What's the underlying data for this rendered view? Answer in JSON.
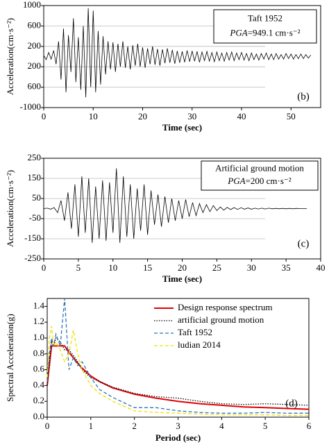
{
  "chart_data": [
    {
      "type": "line",
      "x_label": "Time (sec)",
      "y_label": "Acceleration(cm·s⁻²)",
      "annotation": "Taft 1952",
      "pga_label": "PGA",
      "pga_value": "=949.1 cm·s⁻²",
      "panel_label": "(b)",
      "color": "#000000",
      "grid": true,
      "xlim": [
        0,
        56
      ],
      "xticks": [
        0,
        10,
        20,
        30,
        40,
        50
      ],
      "ylim": [
        -1000,
        1000
      ],
      "yticks": [
        1000,
        600,
        200,
        {
          "value": -200,
          "label": "200"
        },
        {
          "value": -600,
          "label": "600"
        },
        {
          "value": -1000,
          "label": "-1000"
        }
      ],
      "x": [
        0,
        0.5,
        1,
        1.5,
        2,
        2.5,
        3,
        3.5,
        4,
        4.5,
        5,
        5.5,
        6,
        6.5,
        7,
        7.5,
        8,
        8.5,
        9,
        9.5,
        10,
        10.5,
        11,
        11.5,
        12,
        12.5,
        13,
        13.5,
        14,
        14.5,
        15,
        15.5,
        16,
        16.5,
        17,
        17.5,
        18,
        18.5,
        19,
        19.5,
        20,
        20.5,
        21,
        21.5,
        22,
        22.5,
        23,
        23.5,
        24,
        24.5,
        25,
        25.5,
        26,
        26.5,
        27,
        27.5,
        28,
        28.5,
        29,
        29.5,
        30,
        30.5,
        31,
        31.5,
        32,
        32.5,
        33,
        33.5,
        34,
        34.5,
        35,
        35.5,
        36,
        36.5,
        37,
        37.5,
        38,
        38.5,
        39,
        39.5,
        40,
        40.5,
        41,
        41.5,
        42,
        42.5,
        43,
        43.5,
        44,
        44.5,
        45,
        45.5,
        46,
        46.5,
        47,
        47.5,
        48,
        48.5,
        49,
        49.5,
        50,
        50.5,
        51,
        51.5,
        52,
        52.5,
        53,
        53.5,
        54
      ],
      "values": [
        20,
        -60,
        80,
        -50,
        120,
        -150,
        300,
        -450,
        550,
        -700,
        420,
        -300,
        750,
        -500,
        380,
        -650,
        600,
        -800,
        949.1,
        -600,
        900,
        -700,
        500,
        -550,
        400,
        -350,
        300,
        -250,
        280,
        -300,
        250,
        -200,
        300,
        -220,
        200,
        -250,
        220,
        -180,
        250,
        -200,
        180,
        -220,
        160,
        -150,
        200,
        -160,
        150,
        -180,
        140,
        -130,
        160,
        -120,
        130,
        -140,
        110,
        -120,
        100,
        -110,
        120,
        -100,
        110,
        -90,
        100,
        -110,
        90,
        -80,
        100,
        -90,
        80,
        -100,
        90,
        -80,
        70,
        -90,
        80,
        -70,
        90,
        -80,
        70,
        -60,
        80,
        -70,
        60,
        -80,
        70,
        -60,
        50,
        -70,
        60,
        -50,
        70,
        -60,
        50,
        -60,
        60,
        -50,
        40,
        -50,
        60,
        -40,
        50,
        -50,
        40,
        -40,
        50,
        -40,
        40,
        -30,
        30
      ]
    },
    {
      "type": "line",
      "x_label": "Time (sec)",
      "y_label": "Acceleration(cm·s⁻²)",
      "annotation": "Artificial ground motion",
      "pga_label": "PGA",
      "pga_value": "=200 cm·s⁻²",
      "panel_label": "(c)",
      "color": "#000000",
      "grid": true,
      "xlim": [
        0,
        40
      ],
      "xticks": [
        0,
        5,
        10,
        15,
        20,
        25,
        30,
        35,
        40
      ],
      "ylim": [
        -250,
        250
      ],
      "yticks": [
        250,
        150,
        50,
        -50,
        -150,
        -250
      ],
      "x": [
        0,
        0.5,
        1,
        1.5,
        2,
        2.5,
        3,
        3.5,
        4,
        4.5,
        5,
        5.5,
        6,
        6.5,
        7,
        7.5,
        8,
        8.5,
        9,
        9.5,
        10,
        10.5,
        11,
        11.5,
        12,
        12.5,
        13,
        13.5,
        14,
        14.5,
        15,
        15.5,
        16,
        16.5,
        17,
        17.5,
        18,
        18.5,
        19,
        19.5,
        20,
        20.5,
        21,
        21.5,
        22,
        22.5,
        23,
        23.5,
        24,
        24.5,
        25,
        25.5,
        26,
        26.5,
        27,
        27.5,
        28,
        28.5,
        29,
        29.5,
        30,
        30.5,
        31,
        31.5,
        32,
        32.5,
        33,
        33.5,
        34,
        34.5,
        35,
        35.5,
        36,
        36.5,
        37,
        37.5,
        38
      ],
      "values": [
        0,
        2,
        -3,
        5,
        -20,
        40,
        -60,
        80,
        -100,
        120,
        -140,
        160,
        -120,
        150,
        -170,
        110,
        -150,
        140,
        -160,
        130,
        -120,
        200,
        -170,
        160,
        -140,
        120,
        -150,
        100,
        -110,
        120,
        -130,
        90,
        -80,
        70,
        -90,
        60,
        -70,
        50,
        -60,
        40,
        -50,
        45,
        -40,
        30,
        -35,
        25,
        -20,
        20,
        -15,
        15,
        -10,
        8,
        -8,
        6,
        -5,
        5,
        -4,
        4,
        -3,
        3,
        -3,
        2,
        -2,
        2,
        -2,
        2,
        -1,
        1,
        -1,
        1,
        -1,
        1,
        -1,
        1,
        0,
        0,
        0
      ]
    },
    {
      "type": "line",
      "x_label": "Period (sec)",
      "y_label": "Spectral Acceleration(g)",
      "panel_label": "(d)",
      "grid": false,
      "legend": "top-right",
      "xlim": [
        0,
        6
      ],
      "xticks": [
        0,
        1,
        2,
        3,
        4,
        5,
        6
      ],
      "ylim": [
        0,
        1.5
      ],
      "yticks": [
        {
          "value": 0,
          "label": "0.0"
        },
        0.2,
        0.4,
        0.6,
        0.8,
        {
          "value": 1,
          "label": "1.0"
        },
        1.2,
        1.4
      ],
      "x": [
        0,
        0.05,
        0.1,
        0.15,
        0.2,
        0.3,
        0.4,
        0.5,
        0.6,
        0.7,
        0.8,
        1.0,
        1.2,
        1.5,
        2,
        2.5,
        3,
        3.5,
        4,
        4.5,
        5,
        5.5,
        6
      ],
      "series": [
        {
          "name": "Design response spectrum",
          "color": "#e00000",
          "style": "solid",
          "values": [
            0.4,
            0.65,
            0.9,
            0.9,
            0.9,
            0.9,
            0.9,
            0.82,
            0.75,
            0.68,
            0.62,
            0.52,
            0.45,
            0.37,
            0.29,
            0.24,
            0.2,
            0.17,
            0.15,
            0.13,
            0.12,
            0.11,
            0.1
          ]
        },
        {
          "name": "artificial ground motion",
          "color": "#000000",
          "style": "dotted",
          "values": [
            0.4,
            0.7,
            0.95,
            0.9,
            1.0,
            0.95,
            0.85,
            0.85,
            0.78,
            0.7,
            0.6,
            0.5,
            0.45,
            0.38,
            0.3,
            0.26,
            0.24,
            0.2,
            0.17,
            0.16,
            0.17,
            0.16,
            0.15
          ]
        },
        {
          "name": "Taft 1952",
          "color": "#2e75b6",
          "style": "dashed",
          "values": [
            0.45,
            0.8,
            1.0,
            0.9,
            1.05,
            0.9,
            1.5,
            0.6,
            0.75,
            0.65,
            0.7,
            0.5,
            0.35,
            0.25,
            0.12,
            0.12,
            0.08,
            0.06,
            0.05,
            0.05,
            0.06,
            0.05,
            0.05
          ]
        },
        {
          "name": "ludian 2014",
          "color": "#f2e000",
          "style": "dashed",
          "values": [
            0.5,
            1.0,
            1.15,
            0.9,
            0.95,
            0.85,
            0.7,
            0.8,
            1.1,
            0.8,
            0.6,
            0.4,
            0.3,
            0.2,
            0.08,
            0.06,
            0.05,
            0.04,
            0.03,
            0.03,
            0.03,
            0.02,
            0.02
          ]
        }
      ]
    }
  ]
}
